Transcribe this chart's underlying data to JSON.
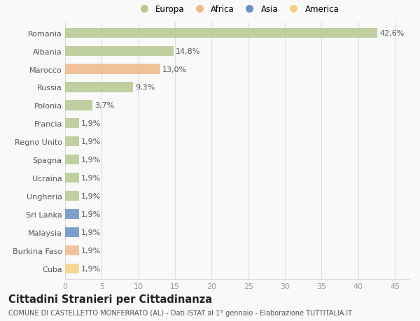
{
  "categories": [
    "Romania",
    "Albania",
    "Marocco",
    "Russia",
    "Polonia",
    "Francia",
    "Regno Unito",
    "Spagna",
    "Ucraina",
    "Ungheria",
    "Sri Lanka",
    "Malaysia",
    "Burkina Faso",
    "Cuba"
  ],
  "values": [
    42.6,
    14.8,
    13.0,
    9.3,
    3.7,
    1.9,
    1.9,
    1.9,
    1.9,
    1.9,
    1.9,
    1.9,
    1.9,
    1.9
  ],
  "labels": [
    "42,6%",
    "14,8%",
    "13,0%",
    "9,3%",
    "3,7%",
    "1,9%",
    "1,9%",
    "1,9%",
    "1,9%",
    "1,9%",
    "1,9%",
    "1,9%",
    "1,9%",
    "1,9%"
  ],
  "colors": [
    "#b5c98e",
    "#b5c98e",
    "#f0b98a",
    "#b5c98e",
    "#b5c98e",
    "#b5c98e",
    "#b5c98e",
    "#b5c98e",
    "#b5c98e",
    "#b5c98e",
    "#6a8fc2",
    "#6a8fc2",
    "#f0b98a",
    "#f5d080"
  ],
  "legend_labels": [
    "Europa",
    "Africa",
    "Asia",
    "America"
  ],
  "legend_colors": [
    "#b5c98e",
    "#f0b98a",
    "#6a8fc2",
    "#f5d080"
  ],
  "xlim": [
    0,
    47
  ],
  "xticks": [
    0,
    5,
    10,
    15,
    20,
    25,
    30,
    35,
    40,
    45
  ],
  "title": "Cittadini Stranieri per Cittadinanza",
  "subtitle": "COMUNE DI CASTELLETTO MONFERRATO (AL) - Dati ISTAT al 1° gennaio - Elaborazione TUTTITALIA.IT",
  "bg_color": "#f9f9f9",
  "grid_color": "#dddddd",
  "bar_height": 0.55,
  "label_fontsize": 8,
  "tick_fontsize": 8,
  "title_fontsize": 10.5,
  "subtitle_fontsize": 7
}
